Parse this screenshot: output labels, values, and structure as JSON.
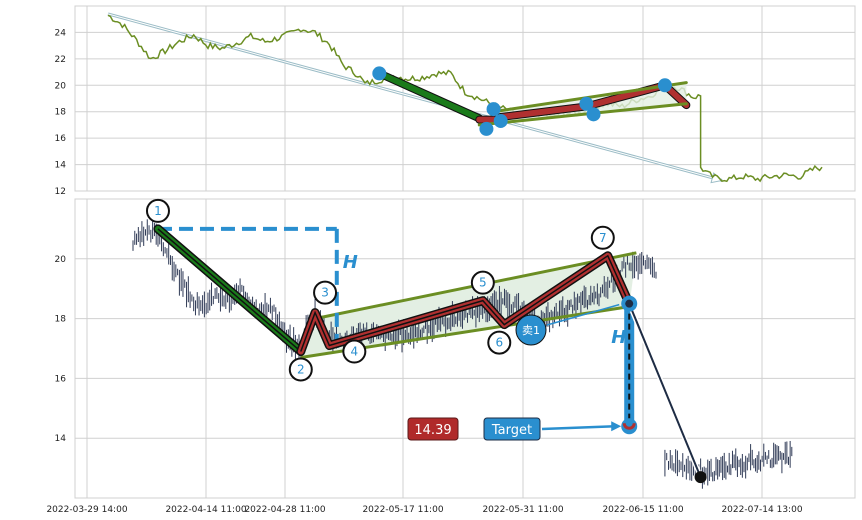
{
  "chart_data": [
    {
      "type": "line",
      "panel": "overview",
      "y_ticks": [
        "12",
        "14",
        "16",
        "18",
        "20",
        "22",
        "24"
      ],
      "ylim": [
        12,
        26
      ],
      "grid": true,
      "series": [
        {
          "color": "#6b8e23",
          "points": [
            [
              0.0,
              25.3
            ],
            [
              0.02,
              24.6
            ],
            [
              0.04,
              23.4
            ],
            [
              0.06,
              22.0
            ],
            [
              0.08,
              22.6
            ],
            [
              0.1,
              23.3
            ],
            [
              0.12,
              23.8
            ],
            [
              0.14,
              23.0
            ],
            [
              0.16,
              22.8
            ],
            [
              0.18,
              23.2
            ],
            [
              0.2,
              23.7
            ],
            [
              0.22,
              23.3
            ],
            [
              0.24,
              23.6
            ],
            [
              0.26,
              24.0
            ],
            [
              0.27,
              24.3
            ],
            [
              0.29,
              24.0
            ],
            [
              0.31,
              23.1
            ],
            [
              0.33,
              21.5
            ],
            [
              0.35,
              20.8
            ],
            [
              0.36,
              20.1
            ],
            [
              0.38,
              20.4
            ],
            [
              0.4,
              20.7
            ],
            [
              0.42,
              20.5
            ],
            [
              0.44,
              20.6
            ],
            [
              0.46,
              20.9
            ],
            [
              0.48,
              20.9
            ],
            [
              0.5,
              19.5
            ],
            [
              0.52,
              19.0
            ],
            [
              0.54,
              18.5
            ],
            [
              0.56,
              18.1
            ],
            [
              0.58,
              17.6
            ],
            [
              0.6,
              17.9
            ],
            [
              0.62,
              17.6
            ],
            [
              0.64,
              17.9
            ],
            [
              0.66,
              17.9
            ],
            [
              0.68,
              18.4
            ],
            [
              0.7,
              18.6
            ],
            [
              0.72,
              18.4
            ],
            [
              0.74,
              18.9
            ],
            [
              0.76,
              19.2
            ],
            [
              0.78,
              20.1
            ],
            [
              0.8,
              19.8
            ],
            [
              0.82,
              19.1
            ],
            [
              0.83,
              19.2
            ],
            [
              0.83,
              13.8
            ],
            [
              0.84,
              13.3
            ],
            [
              0.85,
              13.0
            ],
            [
              0.87,
              12.9
            ],
            [
              0.89,
              13.1
            ],
            [
              0.91,
              12.9
            ],
            [
              0.93,
              13.1
            ],
            [
              0.95,
              13.2
            ],
            [
              0.97,
              13.1
            ],
            [
              0.99,
              13.7
            ],
            [
              1.0,
              13.8
            ]
          ]
        }
      ],
      "trend_arrow": {
        "from": [
          0.0,
          25.4
        ],
        "to": [
          0.86,
          12.8
        ],
        "color": "#9bbcc6"
      },
      "pattern_lines": [
        {
          "from": [
            0.38,
            20.9
          ],
          "to": [
            0.52,
            17.5
          ],
          "color": "#1a7a1a",
          "width": 6
        },
        {
          "from": [
            0.52,
            17.4
          ],
          "to": [
            0.55,
            17.4
          ],
          "color": "#b03030",
          "width": 6
        },
        {
          "from": [
            0.55,
            17.6
          ],
          "to": [
            0.67,
            18.4
          ],
          "color": "#b03030",
          "width": 6
        },
        {
          "from": [
            0.67,
            18.4
          ],
          "to": [
            0.78,
            20.0
          ],
          "color": "#b03030",
          "width": 6
        },
        {
          "from": [
            0.78,
            20.0
          ],
          "to": [
            0.81,
            18.5
          ],
          "color": "#b03030",
          "width": 6
        },
        {
          "from": [
            0.52,
            17.0
          ],
          "to": [
            0.81,
            18.6
          ],
          "color": "#6b8e23",
          "width": 3
        },
        {
          "from": [
            0.54,
            18.0
          ],
          "to": [
            0.81,
            20.2
          ],
          "color": "#6b8e23",
          "width": 3
        }
      ],
      "markers": [
        [
          0.38,
          20.9
        ],
        [
          0.53,
          16.7
        ],
        [
          0.54,
          18.2
        ],
        [
          0.55,
          17.3
        ],
        [
          0.67,
          18.6
        ],
        [
          0.68,
          17.8
        ],
        [
          0.78,
          20.0
        ]
      ]
    },
    {
      "type": "line",
      "panel": "pattern-detail",
      "x_ticks": [
        "2022-03-29 14:00",
        "2022-04-14 11:00",
        "2022-04-28 11:00",
        "2022-05-17 11:00",
        "2022-05-31 11:00",
        "2022-06-15 11:00",
        "2022-07-14 13:00"
      ],
      "y_ticks": [
        "14",
        "16",
        "18",
        "20"
      ],
      "ylim": [
        12,
        22
      ],
      "grid": true,
      "price_color": "#2f3a56",
      "price_path": [
        [
          0.035,
          20.5
        ],
        [
          0.05,
          20.8
        ],
        [
          0.07,
          20.9
        ],
        [
          0.09,
          19.8
        ],
        [
          0.11,
          18.9
        ],
        [
          0.13,
          18.3
        ],
        [
          0.15,
          18.8
        ],
        [
          0.17,
          18.6
        ],
        [
          0.19,
          18.9
        ],
        [
          0.21,
          18.4
        ],
        [
          0.23,
          18.3
        ],
        [
          0.25,
          17.3
        ],
        [
          0.27,
          17.0
        ],
        [
          0.28,
          17.9
        ],
        [
          0.29,
          18.2
        ],
        [
          0.31,
          17.5
        ],
        [
          0.33,
          17.2
        ],
        [
          0.36,
          17.5
        ],
        [
          0.4,
          17.4
        ],
        [
          0.44,
          17.6
        ],
        [
          0.48,
          18.0
        ],
        [
          0.52,
          18.3
        ],
        [
          0.56,
          18.6
        ],
        [
          0.58,
          18.2
        ],
        [
          0.6,
          17.8
        ],
        [
          0.63,
          18.2
        ],
        [
          0.66,
          18.5
        ],
        [
          0.69,
          18.8
        ],
        [
          0.71,
          19.4
        ],
        [
          0.73,
          19.9
        ],
        [
          0.75,
          19.8
        ],
        [
          0.77,
          19.6
        ],
        [
          0.78,
          13.3
        ],
        [
          0.8,
          13.1
        ],
        [
          0.82,
          12.9
        ],
        [
          0.84,
          12.8
        ],
        [
          0.87,
          13.1
        ],
        [
          0.9,
          13.2
        ],
        [
          0.93,
          13.3
        ],
        [
          0.96,
          13.4
        ]
      ],
      "pattern": {
        "zigzag": [
          [
            0.07,
            21.0
          ],
          [
            0.27,
            16.9
          ],
          [
            0.29,
            18.2
          ],
          [
            0.31,
            17.1
          ],
          [
            0.525,
            18.6
          ],
          [
            0.555,
            17.8
          ],
          [
            0.7,
            20.1
          ],
          [
            0.73,
            18.5
          ]
        ],
        "flag_upper": [
          [
            0.29,
            18.0
          ],
          [
            0.74,
            20.2
          ]
        ],
        "flag_lower": [
          [
            0.27,
            16.7
          ],
          [
            0.73,
            18.4
          ]
        ],
        "flagpole_top": [
          0.07,
          21.0
        ],
        "flagpole_bottom": [
          0.27,
          16.9
        ],
        "breakout": [
          0.73,
          18.5
        ],
        "target": [
          0.73,
          14.4
        ],
        "low": [
          0.83,
          12.7
        ]
      },
      "point_labels": [
        "1",
        "2",
        "3",
        "4",
        "5",
        "6",
        "7"
      ],
      "height_label": "H",
      "sell_label": "卖1",
      "target_label": "Target",
      "target_value": "14.39",
      "colors": {
        "pole": "#1a7a1a",
        "zigzag": "#b03030",
        "channel": "#6b8e23",
        "fill": "#e3efe3",
        "accent": "#2a8fcf",
        "badge": "#b02a2a"
      }
    }
  ]
}
